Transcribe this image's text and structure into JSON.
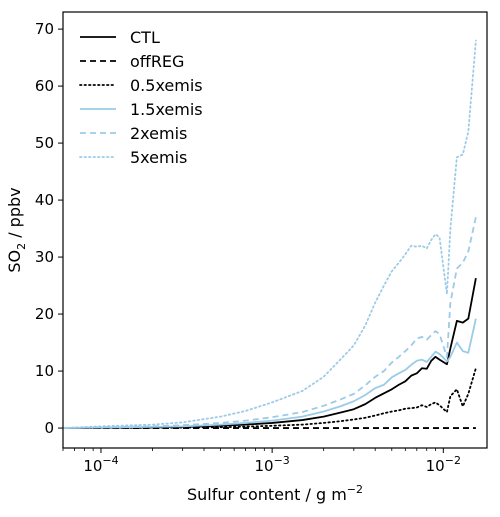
{
  "chart_data": {
    "type": "line",
    "xscale": "log",
    "xlim": [
      6e-05,
      0.018
    ],
    "ylim": [
      -3.5,
      73
    ],
    "xlabel_main": "Sulfur content / g m",
    "xlabel_sup": "−2",
    "ylabel_main": "SO",
    "ylabel_sub": "2",
    "ylabel_rest": " / ppbv",
    "x_ticks": [
      {
        "value": 0.0001,
        "base": "10",
        "exp": "−4"
      },
      {
        "value": 0.001,
        "base": "10",
        "exp": "−3"
      },
      {
        "value": 0.01,
        "base": "10",
        "exp": "−2"
      }
    ],
    "y_ticks": [
      {
        "value": 0,
        "label": "0"
      },
      {
        "value": 10,
        "label": "10"
      },
      {
        "value": 20,
        "label": "20"
      },
      {
        "value": 30,
        "label": "30"
      },
      {
        "value": 40,
        "label": "40"
      },
      {
        "value": 50,
        "label": "50"
      },
      {
        "value": 60,
        "label": "60"
      },
      {
        "value": 70,
        "label": "70"
      }
    ],
    "legend_position": "top-left",
    "x": [
      6e-05,
      0.0001,
      0.0002,
      0.0003,
      0.0005,
      0.0007,
      0.001,
      0.0015,
      0.002,
      0.0025,
      0.003,
      0.0035,
      0.004,
      0.0045,
      0.005,
      0.0055,
      0.006,
      0.0065,
      0.007,
      0.0075,
      0.008,
      0.0085,
      0.009,
      0.0095,
      0.0105,
      0.011,
      0.012,
      0.013,
      0.014,
      0.0155
    ],
    "series": [
      {
        "name": "CTL",
        "color": "#000000",
        "dash": "solid",
        "values": [
          0.0,
          0.05,
          0.1,
          0.2,
          0.4,
          0.6,
          0.9,
          1.4,
          2.0,
          2.7,
          3.3,
          4.2,
          5.3,
          6.1,
          6.8,
          7.6,
          8.2,
          9.2,
          9.6,
          10.5,
          10.4,
          11.8,
          12.5,
          12.0,
          11.2,
          14.0,
          18.8,
          18.5,
          19.2,
          26.3
        ]
      },
      {
        "name": "offREG",
        "color": "#000000",
        "dash": "dashed",
        "values": [
          0,
          0,
          0,
          0,
          0,
          0,
          0,
          0,
          0,
          0,
          0,
          0,
          0,
          0,
          0,
          0,
          0,
          0,
          0,
          0,
          0,
          0,
          0,
          0,
          0,
          0,
          0,
          0,
          0,
          0
        ]
      },
      {
        "name": "0.5xemis",
        "color": "#000000",
        "dash": "dotted",
        "values": [
          0.0,
          0.0,
          0.05,
          0.08,
          0.15,
          0.25,
          0.4,
          0.6,
          0.9,
          1.2,
          1.5,
          1.8,
          2.2,
          2.6,
          2.9,
          3.1,
          3.4,
          3.5,
          3.6,
          4.0,
          3.7,
          4.2,
          4.5,
          4.0,
          2.8,
          5.6,
          6.8,
          3.8,
          6.0,
          10.5
        ]
      },
      {
        "name": "1.5xemis",
        "color": "#9ccbe8",
        "dash": "solid",
        "values": [
          0.0,
          0.1,
          0.2,
          0.3,
          0.6,
          0.9,
          1.3,
          2.0,
          2.9,
          3.8,
          4.7,
          5.8,
          7.0,
          7.6,
          8.9,
          9.6,
          10.2,
          11.1,
          11.8,
          12.0,
          11.6,
          12.5,
          13.4,
          13.0,
          11.7,
          12.5,
          15.0,
          13.5,
          13.2,
          19.2
        ]
      },
      {
        "name": "2xemis",
        "color": "#9ccbe8",
        "dash": "dashed",
        "values": [
          0.0,
          0.15,
          0.3,
          0.5,
          0.9,
          1.3,
          1.9,
          2.8,
          3.9,
          5.0,
          6.0,
          7.5,
          9.0,
          10.0,
          11.5,
          12.5,
          13.5,
          14.5,
          15.7,
          16.0,
          15.5,
          16.3,
          17.0,
          16.5,
          12.5,
          22.0,
          28.0,
          29.0,
          31.0,
          37.0
        ]
      },
      {
        "name": "5xemis",
        "color": "#9ccbe8",
        "dash": "dotted",
        "values": [
          0.0,
          0.3,
          0.6,
          1.0,
          2.0,
          3.0,
          4.5,
          6.5,
          9.0,
          12.0,
          14.5,
          18.0,
          22.0,
          25.0,
          27.5,
          29.0,
          30.5,
          32.0,
          31.8,
          32.0,
          31.5,
          33.0,
          34.0,
          33.5,
          23.5,
          35.0,
          47.5,
          48.0,
          52.0,
          68.0
        ]
      }
    ]
  }
}
